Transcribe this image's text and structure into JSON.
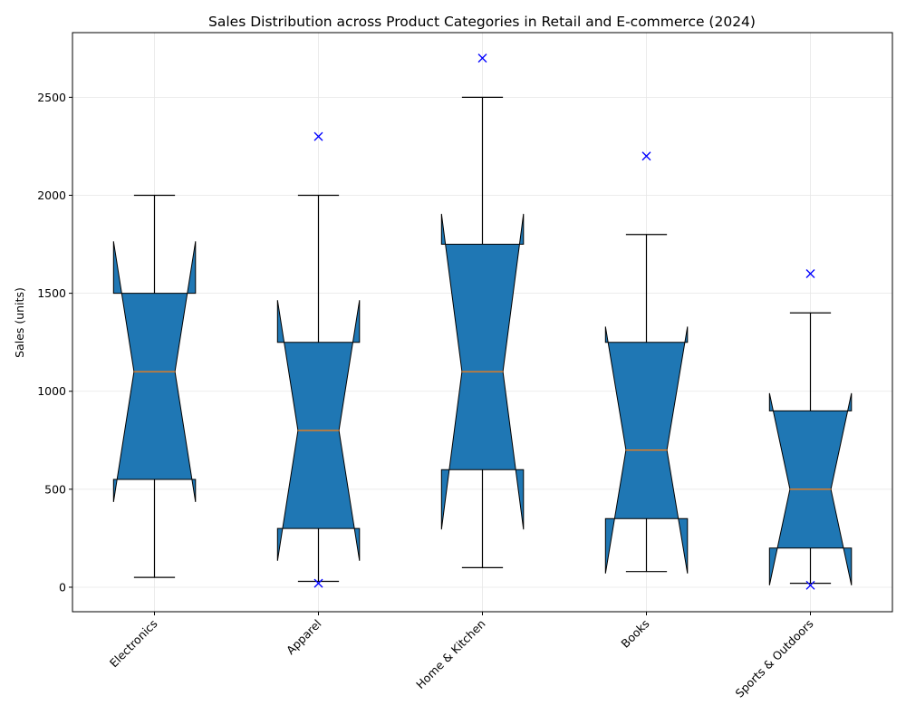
{
  "chart_data": {
    "type": "box",
    "title": "Sales Distribution across Product Categories in Retail and E-commerce (2024)",
    "xlabel": "",
    "ylabel": "Sales (units)",
    "ylim": [
      -125,
      2830
    ],
    "yticks": [
      0,
      500,
      1000,
      1500,
      2000,
      2500
    ],
    "grid": true,
    "notched": true,
    "box_color": "#1f77b4",
    "median_color": "#ff7f0e",
    "outlier_color": "#0000ff",
    "outlier_marker": "x",
    "categories": [
      "Electronics",
      "Apparel",
      "Home & Kitchen",
      "Books",
      "Sports & Outdoors"
    ],
    "boxes": [
      {
        "category": "Electronics",
        "whisker_low": 50,
        "q1": 550,
        "median": 1100,
        "q3": 1500,
        "whisker_high": 2000,
        "notch_low": 435,
        "notch_high": 1765,
        "outliers": []
      },
      {
        "category": "Apparel",
        "whisker_low": 30,
        "q1": 300,
        "median": 800,
        "q3": 1250,
        "whisker_high": 2000,
        "notch_low": 135,
        "notch_high": 1465,
        "outliers": [
          20,
          2300
        ]
      },
      {
        "category": "Home & Kitchen",
        "whisker_low": 100,
        "q1": 600,
        "median": 1100,
        "q3": 1750,
        "whisker_high": 2500,
        "notch_low": 295,
        "notch_high": 1905,
        "outliers": [
          2700
        ]
      },
      {
        "category": "Books",
        "whisker_low": 80,
        "q1": 350,
        "median": 700,
        "q3": 1250,
        "whisker_high": 1800,
        "notch_low": 70,
        "notch_high": 1330,
        "outliers": [
          2200
        ]
      },
      {
        "category": "Sports & Outdoors",
        "whisker_low": 20,
        "q1": 200,
        "median": 500,
        "q3": 900,
        "whisker_high": 1400,
        "notch_low": 10,
        "notch_high": 990,
        "outliers": [
          10,
          1600
        ]
      }
    ]
  }
}
